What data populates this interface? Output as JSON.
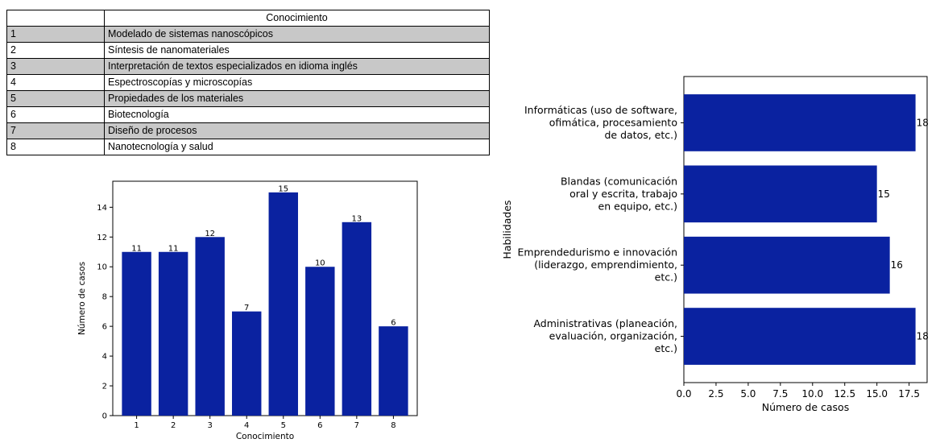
{
  "table": {
    "header": [
      "",
      "Conocimiento"
    ],
    "rows": [
      {
        "num": "1",
        "label": "Modelado de sistemas nanoscópicos"
      },
      {
        "num": "2",
        "label": "Síntesis de nanomateriales"
      },
      {
        "num": "3",
        "label": "Interpretación de textos especializados en idioma inglés"
      },
      {
        "num": "4",
        "label": "Espectroscopías y microscopías"
      },
      {
        "num": "5",
        "label": "Propiedades de los materiales"
      },
      {
        "num": "6",
        "label": "Biotecnología"
      },
      {
        "num": "7",
        "label": "Diseño de procesos"
      },
      {
        "num": "8",
        "label": "Nanotecnología y salud"
      }
    ]
  },
  "chart_data": [
    {
      "type": "bar",
      "categories": [
        "1",
        "2",
        "3",
        "4",
        "5",
        "6",
        "7",
        "8"
      ],
      "values": [
        11,
        11,
        12,
        7,
        15,
        10,
        13,
        6
      ],
      "xlabel": "Conocimiento",
      "ylabel": "Número de casos",
      "ylim": [
        0,
        15.75
      ],
      "yticks": [
        0,
        2,
        4,
        6,
        8,
        10,
        12,
        14
      ],
      "bar_color": "#0a22a0",
      "grid": false
    },
    {
      "type": "bar",
      "orientation": "horizontal",
      "categories": [
        [
          "Informáticas (uso de software,",
          "ofimática, procesamiento",
          "de datos, etc.)"
        ],
        [
          "Blandas (comunicación",
          "oral y escrita, trabajo",
          "en equipo, etc.)"
        ],
        [
          "Emprendedurismo e innovación",
          "(liderazgo, emprendimiento,",
          "etc.)"
        ],
        [
          "Administrativas (planeación,",
          "evaluación, organización,",
          "etc.)"
        ]
      ],
      "values": [
        18,
        15,
        16,
        18
      ],
      "xlabel": "Número de casos",
      "ylabel": "Habilidades",
      "xlim": [
        0,
        18.9
      ],
      "xticks": [
        "0.0",
        "2.5",
        "5.0",
        "7.5",
        "10.0",
        "12.5",
        "15.0",
        "17.5"
      ],
      "bar_color": "#0a22a0",
      "grid": false
    }
  ]
}
